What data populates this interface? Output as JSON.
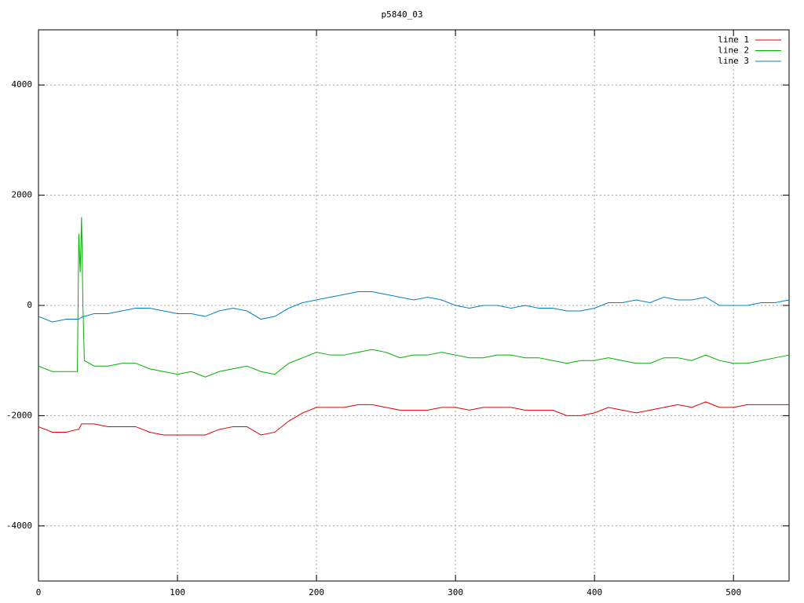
{
  "chart_data": {
    "type": "line",
    "title": "p5840_03",
    "x": [
      0,
      10,
      20,
      28,
      29,
      30,
      31,
      32,
      33,
      40,
      50,
      60,
      70,
      80,
      90,
      100,
      110,
      120,
      130,
      140,
      150,
      160,
      170,
      180,
      190,
      200,
      210,
      220,
      230,
      240,
      250,
      260,
      270,
      280,
      290,
      300,
      310,
      320,
      330,
      340,
      350,
      360,
      370,
      380,
      390,
      400,
      410,
      420,
      430,
      440,
      450,
      460,
      470,
      480,
      490,
      500,
      510,
      520,
      530,
      540
    ],
    "series": [
      {
        "name": "line 1",
        "color": "#e00000",
        "values": [
          -2200,
          -2300,
          -2300,
          -2250,
          -2250,
          -2200,
          -2150,
          -2150,
          -2150,
          -2150,
          -2200,
          -2200,
          -2200,
          -2300,
          -2350,
          -2350,
          -2350,
          -2350,
          -2250,
          -2200,
          -2200,
          -2350,
          -2300,
          -2100,
          -1950,
          -1850,
          -1850,
          -1850,
          -1800,
          -1800,
          -1850,
          -1900,
          -1900,
          -1900,
          -1850,
          -1850,
          -1900,
          -1850,
          -1850,
          -1850,
          -1900,
          -1900,
          -1900,
          -2000,
          -2000,
          -1950,
          -1850,
          -1900,
          -1950,
          -1900,
          -1850,
          -1800,
          -1850,
          -1750,
          -1850,
          -1850,
          -1800,
          -1800,
          -1800,
          -1800
        ]
      },
      {
        "name": "line 2",
        "color": "#00b000",
        "values": [
          -1100,
          -1200,
          -1200,
          -1200,
          1300,
          600,
          1600,
          0,
          -1000,
          -1100,
          -1100,
          -1050,
          -1050,
          -1150,
          -1200,
          -1250,
          -1200,
          -1300,
          -1200,
          -1150,
          -1100,
          -1200,
          -1250,
          -1050,
          -950,
          -850,
          -900,
          -900,
          -850,
          -800,
          -850,
          -950,
          -900,
          -900,
          -850,
          -900,
          -950,
          -950,
          -900,
          -900,
          -950,
          -950,
          -1000,
          -1050,
          -1000,
          -1000,
          -950,
          -1000,
          -1050,
          -1050,
          -950,
          -950,
          -1000,
          -900,
          -1000,
          -1050,
          -1050,
          -1000,
          -950,
          -900
        ]
      },
      {
        "name": "line 3",
        "color": "#0080c0",
        "values": [
          -200,
          -300,
          -250,
          -250,
          -250,
          -230,
          -220,
          -200,
          -200,
          -150,
          -150,
          -100,
          -50,
          -50,
          -100,
          -150,
          -150,
          -200,
          -100,
          -50,
          -100,
          -250,
          -200,
          -50,
          50,
          100,
          150,
          200,
          250,
          250,
          200,
          150,
          100,
          150,
          100,
          0,
          -50,
          0,
          0,
          -50,
          0,
          -50,
          -50,
          -100,
          -100,
          -50,
          50,
          50,
          100,
          50,
          150,
          100,
          100,
          150,
          0,
          0,
          0,
          50,
          50,
          100
        ]
      }
    ],
    "xlim": [
      0,
      540
    ],
    "ylim": [
      -5000,
      5000
    ],
    "xticks": [
      0,
      100,
      200,
      300,
      400,
      500
    ],
    "yticks": [
      -4000,
      -2000,
      0,
      2000,
      4000
    ],
    "grid": true,
    "legend": "top-right"
  }
}
